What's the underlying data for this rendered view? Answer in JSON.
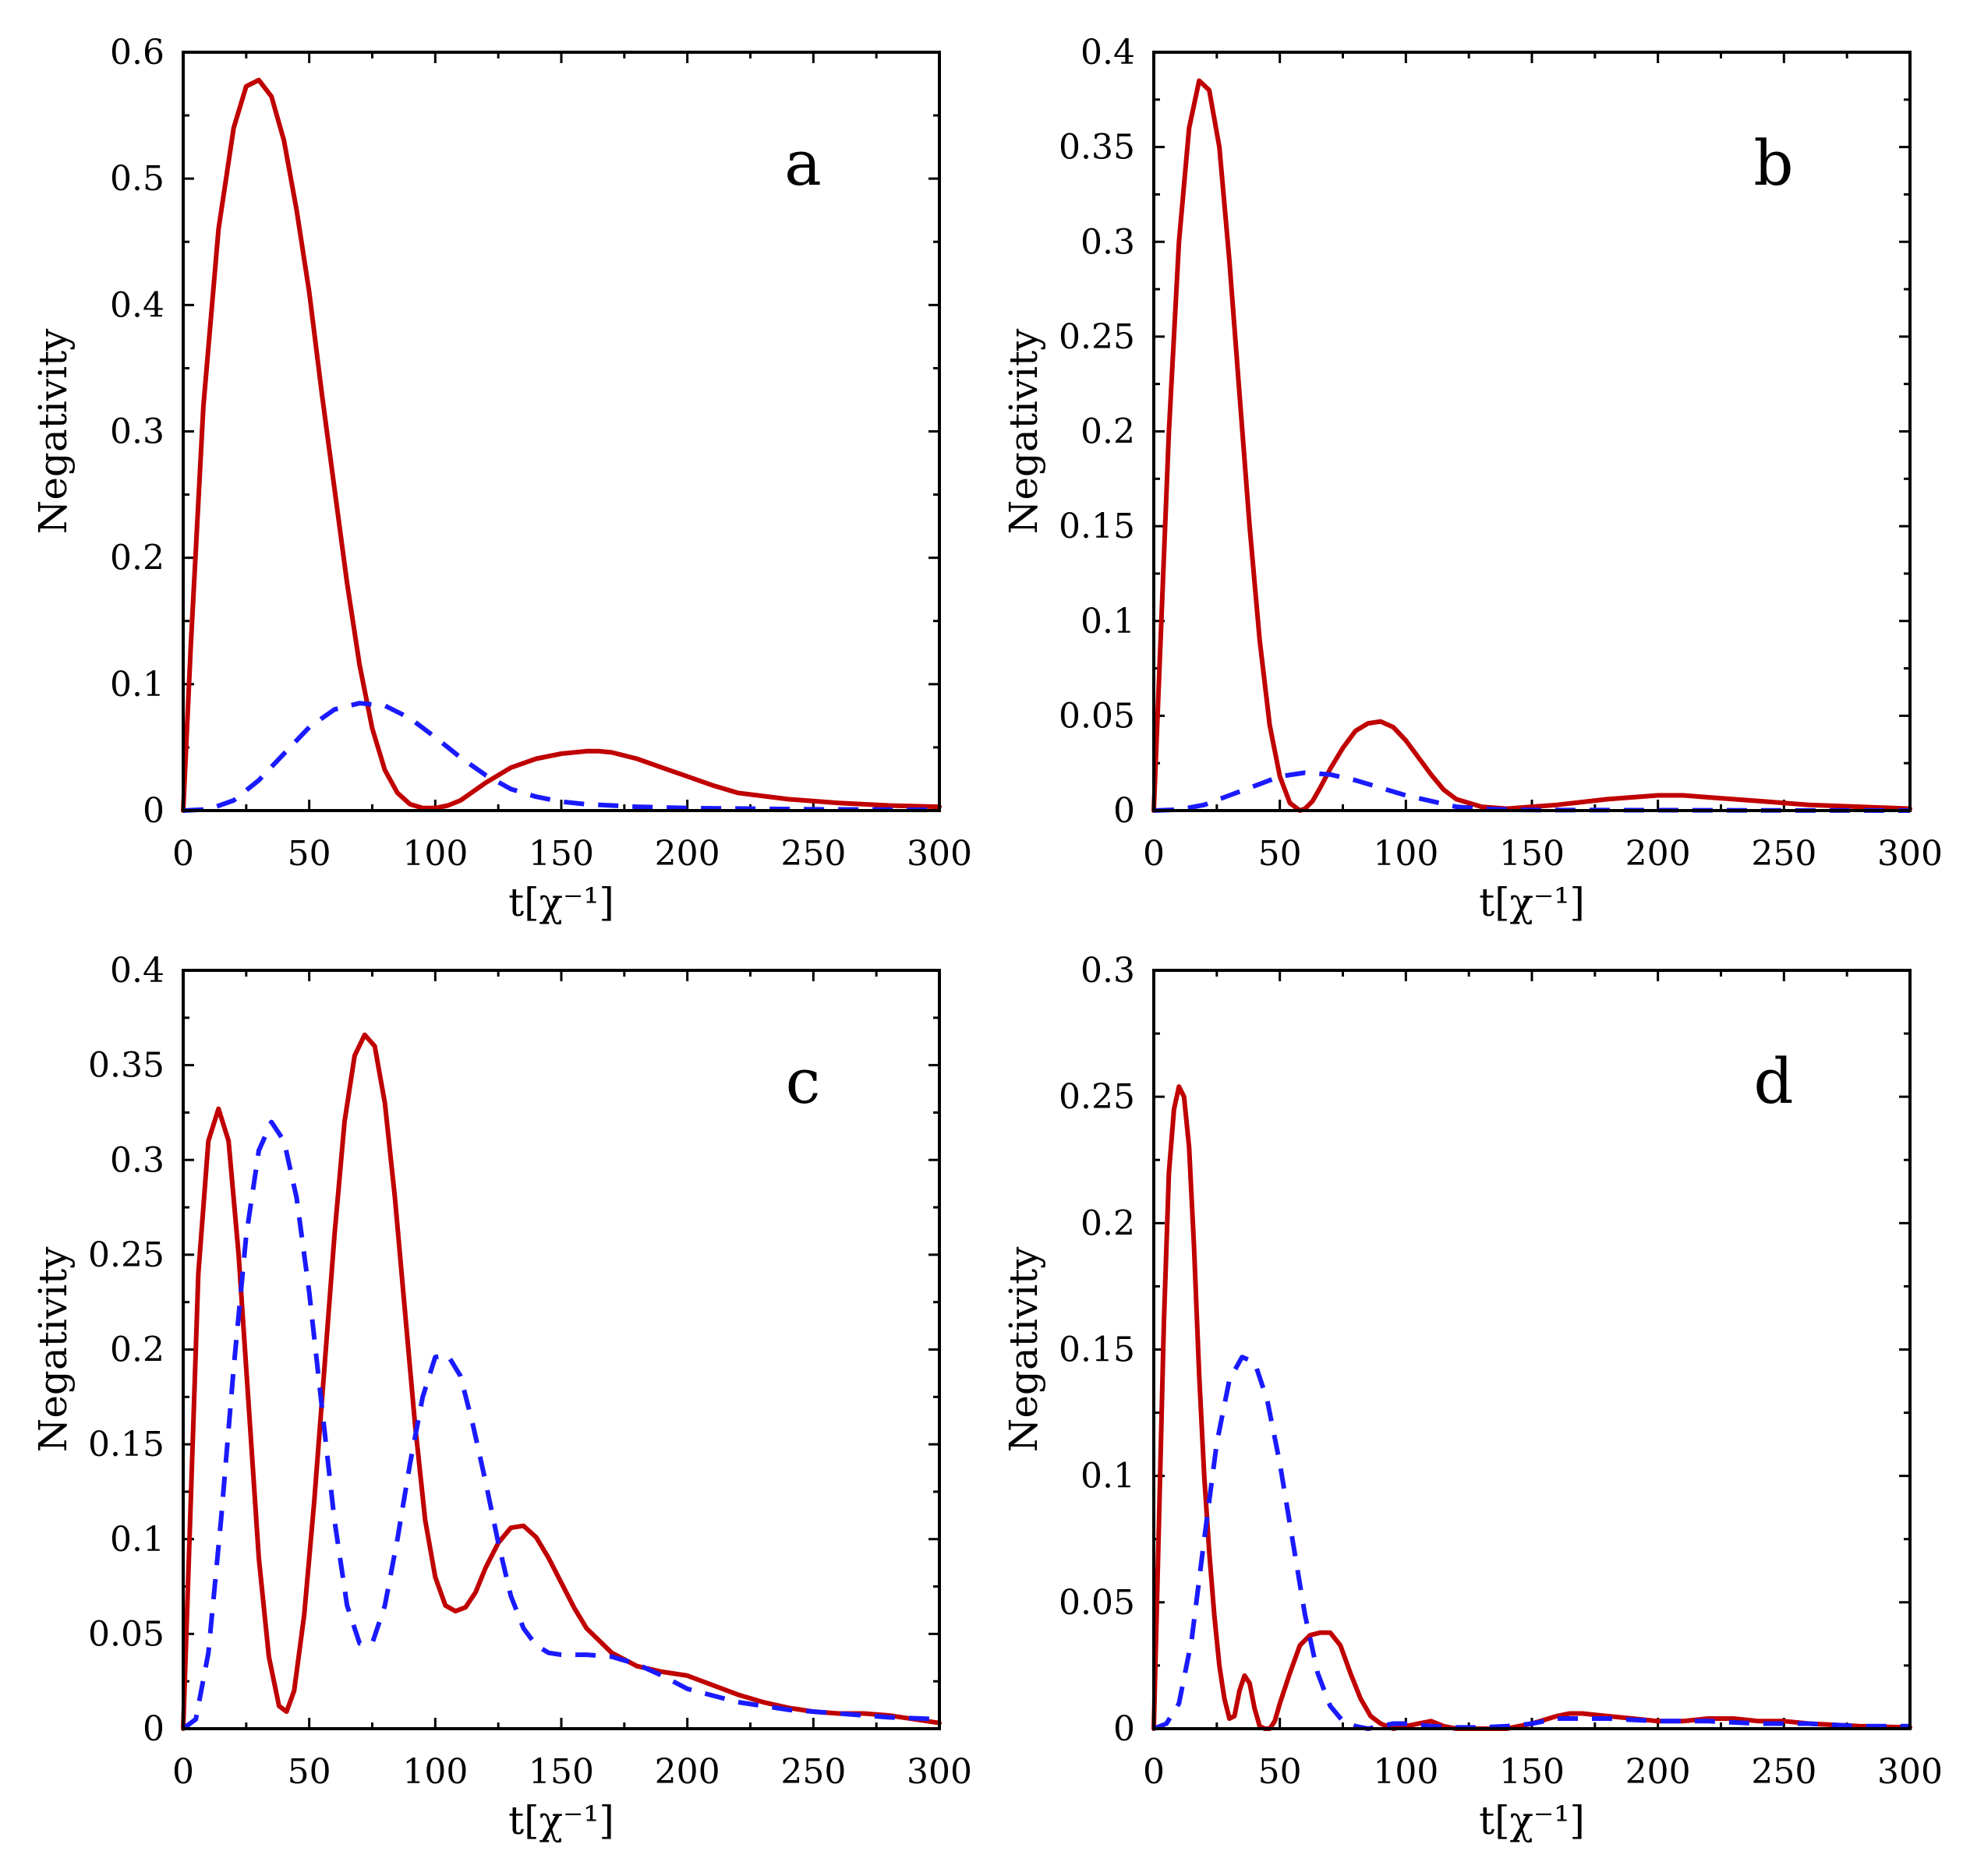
{
  "colors": {
    "solid": "#c00000",
    "dashed": "#1a1aff"
  },
  "chart_data": [
    {
      "panel": "a",
      "type": "line",
      "ylabel": "Negativity",
      "xlabel": "t[χ⁻¹]",
      "xlim": [
        0,
        300
      ],
      "ylim": [
        0,
        0.6
      ],
      "xticks": [
        0,
        50,
        100,
        150,
        200,
        250,
        300
      ],
      "yticks": [
        0,
        0.1,
        0.2,
        0.3,
        0.4,
        0.5,
        0.6
      ],
      "xtick_labels": [
        "0",
        "50",
        "100",
        "150",
        "200",
        "250",
        "300"
      ],
      "ytick_labels": [
        "0",
        "0.1",
        "0.2",
        "0.3",
        "0.4",
        "0.5",
        "0.6"
      ],
      "series": [
        {
          "name": "solid",
          "style": "solid",
          "x": [
            0,
            3,
            8,
            14,
            20,
            25,
            30,
            35,
            40,
            45,
            50,
            55,
            60,
            65,
            70,
            75,
            80,
            85,
            90,
            95,
            100,
            105,
            110,
            115,
            120,
            125,
            130,
            140,
            150,
            160,
            165,
            170,
            180,
            190,
            200,
            210,
            220,
            240,
            260,
            280,
            300
          ],
          "y": [
            0,
            0.13,
            0.32,
            0.46,
            0.54,
            0.573,
            0.578,
            0.565,
            0.53,
            0.475,
            0.41,
            0.33,
            0.255,
            0.18,
            0.115,
            0.065,
            0.032,
            0.014,
            0.005,
            0.002,
            0.002,
            0.004,
            0.008,
            0.015,
            0.022,
            0.028,
            0.034,
            0.041,
            0.045,
            0.047,
            0.047,
            0.046,
            0.041,
            0.034,
            0.027,
            0.02,
            0.014,
            0.009,
            0.006,
            0.004,
            0.003
          ]
        },
        {
          "name": "dashed",
          "style": "dashed",
          "x": [
            0,
            10,
            20,
            30,
            40,
            50,
            60,
            70,
            80,
            90,
            100,
            110,
            120,
            130,
            140,
            150,
            160,
            180,
            200,
            250,
            300
          ],
          "y": [
            0,
            0.001,
            0.008,
            0.024,
            0.045,
            0.066,
            0.08,
            0.085,
            0.083,
            0.073,
            0.058,
            0.042,
            0.028,
            0.017,
            0.011,
            0.007,
            0.005,
            0.003,
            0.002,
            0.001,
            0.0005
          ]
        }
      ]
    },
    {
      "panel": "b",
      "type": "line",
      "ylabel": "Negativity",
      "xlabel": "t[χ⁻¹]",
      "xlim": [
        0,
        300
      ],
      "ylim": [
        0,
        0.4
      ],
      "xticks": [
        0,
        50,
        100,
        150,
        200,
        250,
        300
      ],
      "yticks": [
        0,
        0.05,
        0.1,
        0.15,
        0.2,
        0.25,
        0.3,
        0.35,
        0.4
      ],
      "xtick_labels": [
        "0",
        "50",
        "100",
        "150",
        "200",
        "250",
        "300"
      ],
      "ytick_labels": [
        "0",
        "0.05",
        "0.1",
        "0.15",
        "0.2",
        "0.25",
        "0.3",
        "0.35",
        "0.4"
      ],
      "series": [
        {
          "name": "solid",
          "style": "solid",
          "x": [
            0,
            3,
            6,
            10,
            14,
            18,
            22,
            26,
            30,
            34,
            38,
            42,
            46,
            50,
            54,
            58,
            60,
            63,
            66,
            70,
            75,
            80,
            85,
            90,
            95,
            100,
            105,
            110,
            115,
            120,
            130,
            140,
            150,
            160,
            180,
            200,
            210,
            220,
            240,
            260,
            280,
            300
          ],
          "y": [
            0,
            0.1,
            0.2,
            0.3,
            0.36,
            0.385,
            0.38,
            0.35,
            0.29,
            0.22,
            0.15,
            0.09,
            0.045,
            0.018,
            0.004,
            0.0,
            0.001,
            0.005,
            0.012,
            0.022,
            0.033,
            0.042,
            0.046,
            0.047,
            0.044,
            0.037,
            0.028,
            0.019,
            0.011,
            0.006,
            0.002,
            0.001,
            0.002,
            0.003,
            0.006,
            0.008,
            0.008,
            0.007,
            0.005,
            0.003,
            0.002,
            0.001
          ]
        },
        {
          "name": "dashed",
          "style": "dashed",
          "x": [
            0,
            10,
            20,
            30,
            40,
            50,
            60,
            70,
            80,
            90,
            100,
            110,
            120,
            130,
            140,
            150,
            200,
            250,
            300
          ],
          "y": [
            0,
            0.0005,
            0.003,
            0.008,
            0.013,
            0.018,
            0.02,
            0.019,
            0.016,
            0.012,
            0.008,
            0.005,
            0.002,
            0.001,
            0.0005,
            0.0003,
            0.0002,
            0.0001,
            0
          ]
        }
      ]
    },
    {
      "panel": "c",
      "type": "line",
      "ylabel": "Negativity",
      "xlabel": "t[χ⁻¹]",
      "xlim": [
        0,
        300
      ],
      "ylim": [
        0,
        0.4
      ],
      "xticks": [
        0,
        50,
        100,
        150,
        200,
        250,
        300
      ],
      "yticks": [
        0,
        0.05,
        0.1,
        0.15,
        0.2,
        0.25,
        0.3,
        0.35,
        0.4
      ],
      "xtick_labels": [
        "0",
        "50",
        "100",
        "150",
        "200",
        "250",
        "300"
      ],
      "ytick_labels": [
        "0",
        "0.05",
        "0.1",
        "0.15",
        "0.2",
        "0.25",
        "0.3",
        "0.35",
        "0.4"
      ],
      "series": [
        {
          "name": "solid",
          "style": "solid",
          "x": [
            0,
            3,
            6,
            10,
            14,
            18,
            22,
            26,
            30,
            34,
            38,
            41,
            44,
            48,
            52,
            56,
            60,
            64,
            68,
            72,
            76,
            80,
            84,
            88,
            92,
            96,
            100,
            104,
            108,
            112,
            116,
            120,
            125,
            130,
            135,
            140,
            145,
            150,
            155,
            160,
            170,
            180,
            190,
            200,
            210,
            220,
            230,
            240,
            250,
            260,
            270,
            280,
            290,
            300
          ],
          "y": [
            0,
            0.12,
            0.24,
            0.31,
            0.327,
            0.31,
            0.25,
            0.17,
            0.09,
            0.038,
            0.012,
            0.009,
            0.02,
            0.06,
            0.12,
            0.19,
            0.26,
            0.32,
            0.355,
            0.366,
            0.36,
            0.33,
            0.28,
            0.22,
            0.16,
            0.11,
            0.08,
            0.065,
            0.062,
            0.064,
            0.072,
            0.085,
            0.098,
            0.106,
            0.107,
            0.101,
            0.09,
            0.077,
            0.064,
            0.053,
            0.04,
            0.033,
            0.03,
            0.028,
            0.023,
            0.018,
            0.014,
            0.011,
            0.009,
            0.008,
            0.008,
            0.007,
            0.005,
            0.003
          ]
        },
        {
          "name": "dashed",
          "style": "dashed",
          "x": [
            0,
            5,
            10,
            15,
            20,
            25,
            30,
            35,
            40,
            45,
            50,
            55,
            60,
            65,
            70,
            75,
            80,
            85,
            90,
            95,
            100,
            105,
            110,
            115,
            120,
            125,
            130,
            135,
            140,
            145,
            150,
            160,
            170,
            180,
            190,
            200,
            220,
            240,
            260,
            280,
            300
          ],
          "y": [
            0,
            0.005,
            0.04,
            0.11,
            0.19,
            0.26,
            0.305,
            0.32,
            0.31,
            0.28,
            0.23,
            0.17,
            0.11,
            0.065,
            0.045,
            0.045,
            0.065,
            0.1,
            0.14,
            0.175,
            0.196,
            0.197,
            0.186,
            0.16,
            0.13,
            0.098,
            0.07,
            0.053,
            0.044,
            0.04,
            0.039,
            0.039,
            0.038,
            0.034,
            0.028,
            0.021,
            0.014,
            0.01,
            0.008,
            0.006,
            0.005
          ]
        }
      ]
    },
    {
      "panel": "d",
      "type": "line",
      "ylabel": "Negativity",
      "xlabel": "t[χ⁻¹]",
      "xlim": [
        0,
        300
      ],
      "ylim": [
        0,
        0.3
      ],
      "xticks": [
        0,
        50,
        100,
        150,
        200,
        250,
        300
      ],
      "yticks": [
        0,
        0.05,
        0.1,
        0.15,
        0.2,
        0.25,
        0.3
      ],
      "xtick_labels": [
        "0",
        "50",
        "100",
        "150",
        "200",
        "250",
        "300"
      ],
      "ytick_labels": [
        "0",
        "0.05",
        "0.1",
        "0.15",
        "0.2",
        "0.25",
        "0.3"
      ],
      "series": [
        {
          "name": "solid",
          "style": "solid",
          "x": [
            0,
            2,
            4,
            6,
            8,
            10,
            12,
            14,
            16,
            18,
            20,
            22,
            24,
            26,
            28,
            30,
            32,
            34,
            36,
            38,
            40,
            42,
            44,
            46,
            48,
            50,
            54,
            58,
            62,
            66,
            70,
            74,
            78,
            82,
            86,
            90,
            95,
            100,
            105,
            110,
            115,
            120,
            130,
            140,
            150,
            160,
            165,
            170,
            180,
            190,
            200,
            210,
            220,
            230,
            240,
            250,
            260,
            280,
            300
          ],
          "y": [
            0,
            0.08,
            0.16,
            0.22,
            0.245,
            0.254,
            0.25,
            0.23,
            0.19,
            0.14,
            0.1,
            0.07,
            0.045,
            0.025,
            0.012,
            0.004,
            0.005,
            0.015,
            0.021,
            0.018,
            0.008,
            0.001,
            0.0,
            0.0,
            0.003,
            0.01,
            0.022,
            0.033,
            0.037,
            0.038,
            0.038,
            0.033,
            0.022,
            0.012,
            0.005,
            0.002,
            0.0,
            0.001,
            0.002,
            0.003,
            0.001,
            0.0,
            0.0,
            0.0,
            0.002,
            0.005,
            0.006,
            0.006,
            0.005,
            0.004,
            0.003,
            0.003,
            0.004,
            0.004,
            0.003,
            0.003,
            0.002,
            0.001,
            0.0005
          ]
        },
        {
          "name": "dashed",
          "style": "dashed",
          "x": [
            0,
            5,
            10,
            15,
            20,
            25,
            30,
            35,
            40,
            45,
            50,
            55,
            60,
            65,
            70,
            75,
            80,
            85,
            90,
            95,
            100,
            110,
            120,
            130,
            140,
            150,
            160,
            170,
            180,
            200,
            220,
            240,
            260,
            280,
            300
          ],
          "y": [
            0,
            0.002,
            0.01,
            0.035,
            0.075,
            0.113,
            0.138,
            0.147,
            0.145,
            0.13,
            0.105,
            0.075,
            0.045,
            0.022,
            0.009,
            0.003,
            0.001,
            0.0,
            0.001,
            0.002,
            0.002,
            0.001,
            0.0005,
            0.0005,
            0.001,
            0.002,
            0.004,
            0.004,
            0.004,
            0.003,
            0.003,
            0.002,
            0.002,
            0.001,
            0.001
          ]
        }
      ]
    }
  ]
}
